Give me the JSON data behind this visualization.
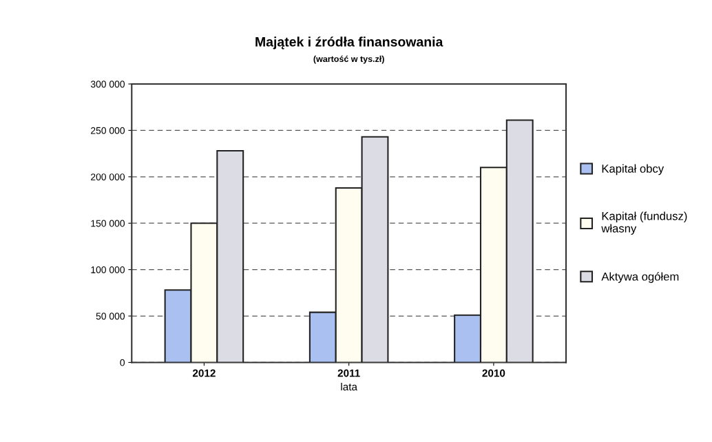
{
  "chart_data": {
    "type": "bar",
    "title": "Majątek i źródła finansowania",
    "subtitle": "(wartość w tys.zł)",
    "xlabel": "lata",
    "categories": [
      "2012",
      "2011",
      "2010"
    ],
    "series": [
      {
        "name": "Kapitał obcy",
        "color": "#a9c0f0",
        "values": [
          78000,
          54000,
          51000
        ]
      },
      {
        "name": "Kapitał (fundusz)\nwłasny",
        "color": "#fffdf0",
        "values": [
          150000,
          188000,
          210000
        ]
      },
      {
        "name": "Aktywa ogółem",
        "color": "#dcdce4",
        "values": [
          228000,
          243000,
          261000
        ]
      }
    ],
    "ylim": [
      0,
      300000
    ],
    "yticks": [
      {
        "value": 0,
        "label": "0"
      },
      {
        "value": 50000,
        "label": "50 000"
      },
      {
        "value": 100000,
        "label": "100 000"
      },
      {
        "value": 150000,
        "label": "150 000"
      },
      {
        "value": 200000,
        "label": "200 000"
      },
      {
        "value": 250000,
        "label": "250 000"
      },
      {
        "value": 300000,
        "label": "300 000"
      }
    ],
    "grid": "y",
    "legend": "right"
  }
}
